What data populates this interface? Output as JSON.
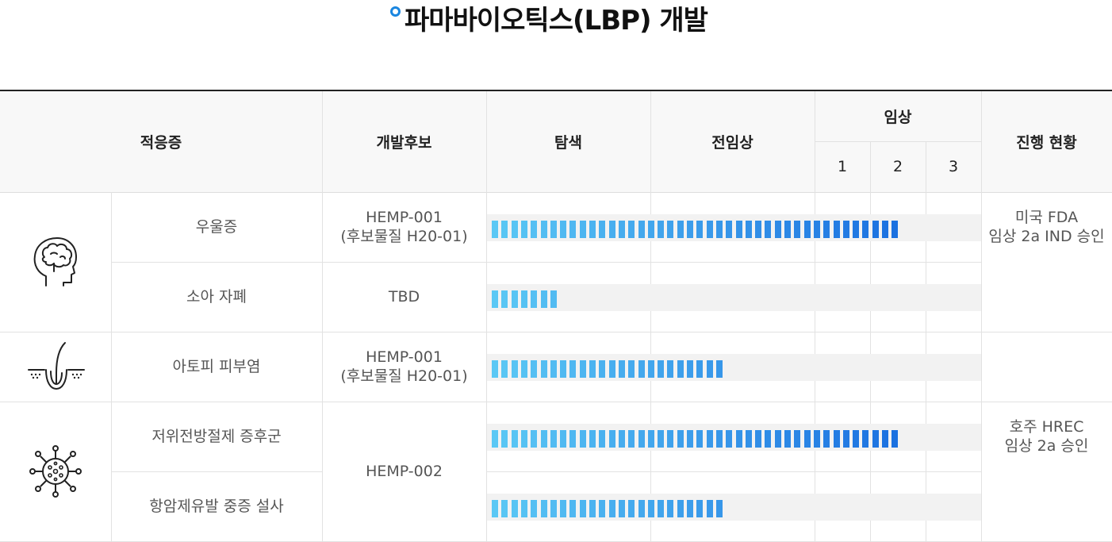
{
  "title": "파마바이오틱스(LBP) 개발",
  "header": {
    "indication": "적응증",
    "candidate": "개발후보",
    "discovery": "탐색",
    "preclinical": "전임상",
    "clinical": "임상",
    "phase1": "1",
    "phase2": "2",
    "phase3": "3",
    "status": "진행 현황"
  },
  "rows": [
    {
      "indication": "우울증",
      "candidate_line1": "HEMP-001",
      "candidate_line2": "(후보물질 H20-01)",
      "status_line1": "미국 FDA",
      "status_line2": "임상 2a IND 승인",
      "progress_stage": "임상 2"
    },
    {
      "indication": "소아 자폐",
      "candidate_line1": "TBD",
      "candidate_line2": "",
      "status_line1": "",
      "status_line2": "",
      "progress_stage": "탐색"
    },
    {
      "indication": "아토피 피부염",
      "candidate_line1": "HEMP-001",
      "candidate_line2": "(후보물질 H20-01)",
      "status_line1": "",
      "status_line2": "",
      "progress_stage": "전임상"
    },
    {
      "indication": "저위전방절제 증후군",
      "candidate_line1": "HEMP-002",
      "candidate_line2": "",
      "status_line1": "호주 HREC",
      "status_line2": "임상 2a 승인",
      "progress_stage": "임상 2"
    },
    {
      "indication": "항암제유발 중증 설사",
      "candidate_line1": "",
      "candidate_line2": "",
      "status_line1": "",
      "status_line2": "",
      "progress_stage": "전임상"
    }
  ],
  "groups": [
    {
      "icon": "brain-head-icon"
    },
    {
      "icon": "skin-hair-icon"
    },
    {
      "icon": "virus-icon"
    }
  ],
  "colors": {
    "accent": "#1a86e0",
    "bar_light": "#5bc8f5",
    "bar_dark": "#1a6fe0",
    "track": "#f2f2f2"
  }
}
